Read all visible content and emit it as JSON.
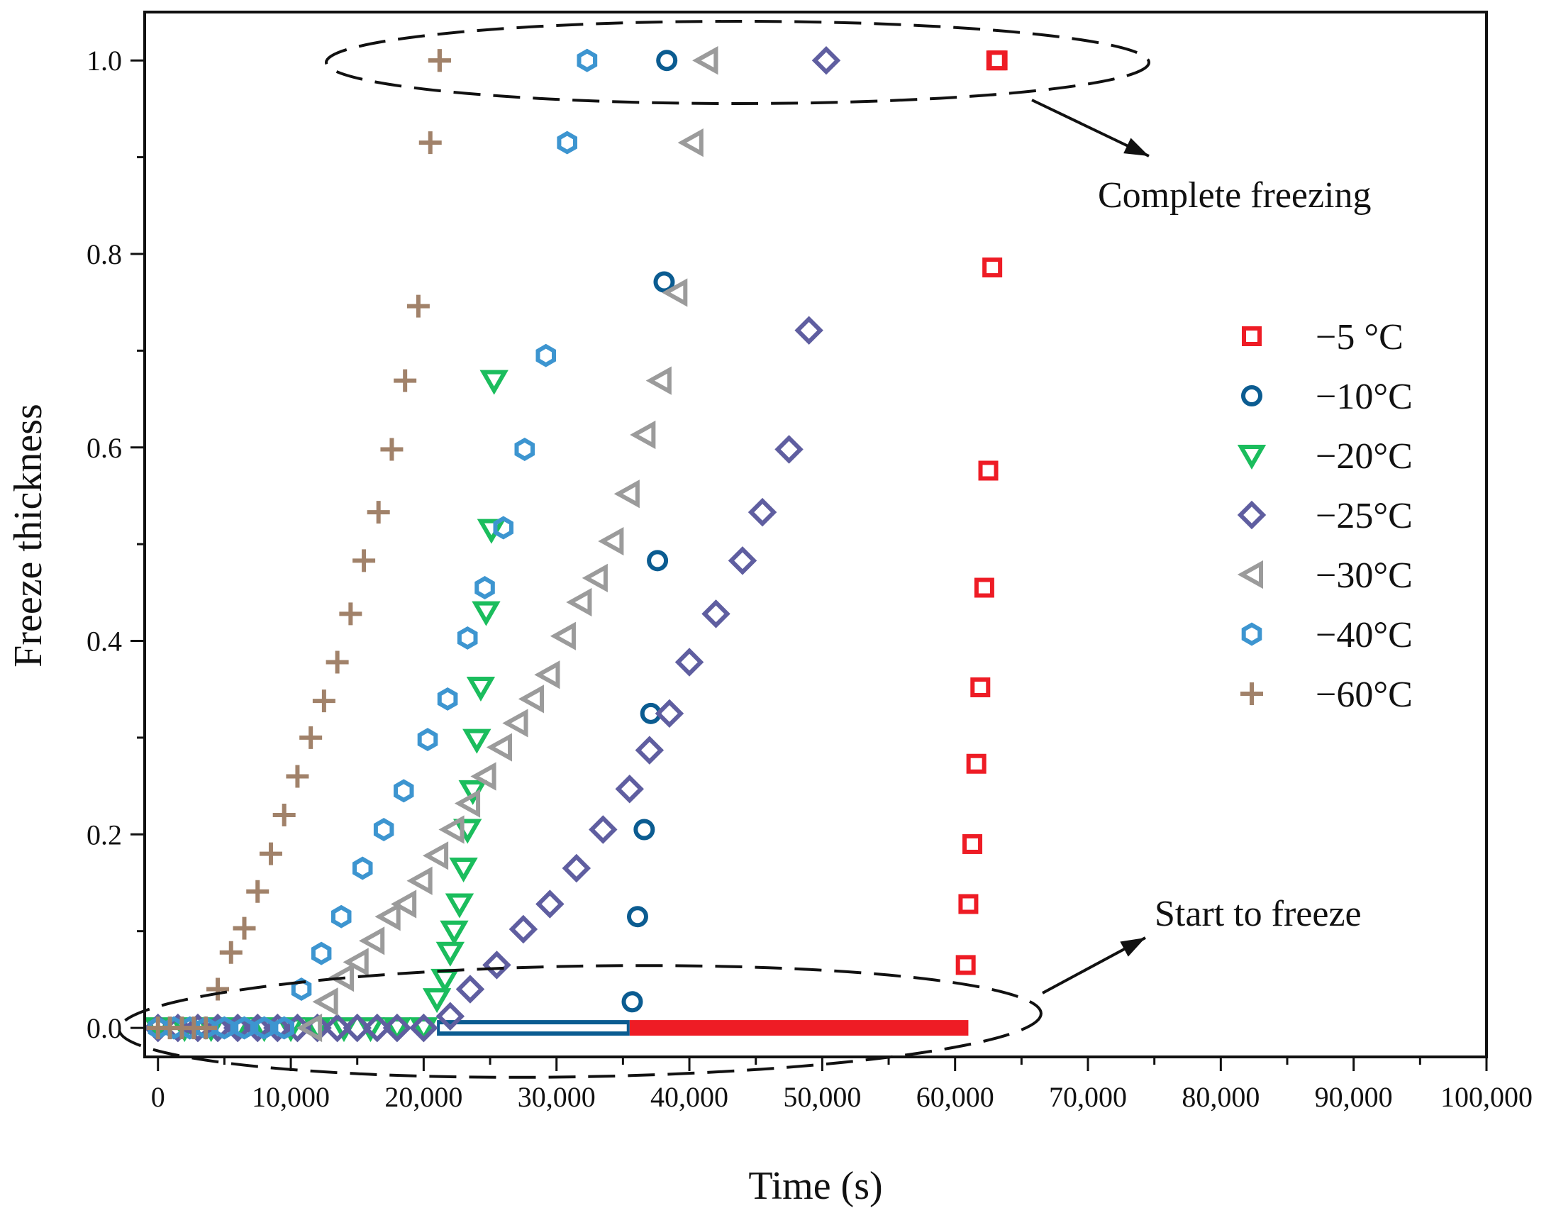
{
  "chart_data": {
    "type": "scatter",
    "title": "",
    "xlabel": "Time (s)",
    "ylabel": "Freeze thickness",
    "xlim": [
      -1000,
      100000
    ],
    "ylim": [
      -0.03,
      1.05
    ],
    "x_ticks": [
      0,
      10000,
      20000,
      30000,
      40000,
      50000,
      60000,
      70000,
      80000,
      90000,
      100000
    ],
    "x_tick_labels": [
      "0",
      "10,000",
      "20,000",
      "30,000",
      "40,000",
      "50,000",
      "60,000",
      "70,000",
      "80,000",
      "90,000",
      "100,000"
    ],
    "y_ticks": [
      0.0,
      0.2,
      0.4,
      0.6,
      0.8,
      1.0
    ],
    "y_tick_labels": [
      "0.0",
      "0.2",
      "0.4",
      "0.6",
      "0.8",
      "1.0"
    ],
    "grid": false,
    "legend_position": "right",
    "series": [
      {
        "name": "−5  °C",
        "marker": "square",
        "color": "#ee1c25",
        "x": [
          60800,
          61000,
          61300,
          61600,
          61900,
          62200,
          62500,
          62800,
          63100,
          63200
        ],
        "y": [
          0.065,
          0.128,
          0.19,
          0.273,
          0.352,
          0.455,
          0.576,
          0.786,
          1.0,
          1.0
        ],
        "flat_zero_line": [
          35500,
          61000
        ]
      },
      {
        "name": "−10°C",
        "marker": "circle",
        "color": "#0b5c91",
        "x": [
          35700,
          36100,
          36600,
          37100,
          37600,
          38100,
          38300
        ],
        "y": [
          0.027,
          0.115,
          0.205,
          0.325,
          0.483,
          0.771,
          1.0
        ],
        "flat_zero_line": [
          21000,
          35500
        ]
      },
      {
        "name": "−20°C",
        "marker": "triangle-down",
        "color": "#1bbd5d",
        "x": [
          0,
          2000,
          4000,
          6000,
          8000,
          10000,
          12000,
          14000,
          16000,
          18000,
          20000,
          21000,
          21600,
          22000,
          22300,
          22700,
          23000,
          23300,
          23700,
          24000,
          24300,
          24700,
          25100,
          25300
        ],
        "y": [
          0,
          0,
          0,
          0,
          0,
          0,
          0,
          0,
          0,
          0,
          0,
          0.03,
          0.05,
          0.078,
          0.1,
          0.128,
          0.165,
          0.205,
          0.245,
          0.298,
          0.352,
          0.43,
          0.515,
          0.669
        ]
      },
      {
        "name": "−25°C",
        "marker": "diamond",
        "color": "#5f5ea0",
        "x": [
          0,
          1500,
          3000,
          4500,
          6000,
          7500,
          9000,
          10500,
          12000,
          13500,
          15000,
          16500,
          18000,
          20000,
          22000,
          23500,
          25500,
          27500,
          29500,
          31500,
          33500,
          35500,
          37000,
          38500,
          40000,
          42000,
          44000,
          45500,
          47500,
          49000,
          50300
        ],
        "y": [
          0,
          0,
          0,
          0,
          0,
          0,
          0,
          0,
          0,
          0,
          0,
          0,
          0,
          0,
          0.012,
          0.04,
          0.065,
          0.102,
          0.128,
          0.165,
          0.205,
          0.247,
          0.287,
          0.325,
          0.378,
          0.428,
          0.483,
          0.533,
          0.598,
          0.721,
          1.0
        ]
      },
      {
        "name": "−30°C",
        "marker": "triangle-left",
        "color": "#9b9b9b",
        "x": [
          11500,
          12700,
          13900,
          15000,
          16200,
          17400,
          18600,
          19800,
          21000,
          22200,
          23400,
          24600,
          25800,
          27000,
          28200,
          29400,
          30600,
          31800,
          33000,
          34200,
          35400,
          36600,
          37800,
          39000,
          40200,
          41300,
          41300
        ],
        "y": [
          0,
          0.027,
          0.052,
          0.068,
          0.09,
          0.115,
          0.128,
          0.152,
          0.178,
          0.205,
          0.232,
          0.26,
          0.29,
          0.315,
          0.34,
          0.365,
          0.405,
          0.44,
          0.465,
          0.503,
          0.552,
          0.613,
          0.669,
          0.76,
          0.915,
          1.0,
          1.0
        ]
      },
      {
        "name": "−40°C",
        "marker": "hexagon",
        "color": "#3d95d0",
        "x": [
          0,
          1200,
          2400,
          3600,
          5000,
          6500,
          8000,
          9500,
          10800,
          12300,
          13800,
          15400,
          17000,
          18500,
          20300,
          21800,
          23300,
          24600,
          26000,
          27600,
          29200,
          30800,
          32300,
          32300
        ],
        "y": [
          0,
          0,
          0,
          0,
          0,
          0,
          0,
          0,
          0.04,
          0.077,
          0.115,
          0.165,
          0.205,
          0.245,
          0.298,
          0.34,
          0.403,
          0.455,
          0.517,
          0.598,
          0.695,
          0.915,
          1.0,
          1.0
        ]
      },
      {
        "name": "−60°C",
        "marker": "plus",
        "color": "#a1826a",
        "x": [
          0,
          900,
          1800,
          2700,
          3600,
          4500,
          5500,
          6500,
          7500,
          8500,
          9500,
          10500,
          11500,
          12500,
          13500,
          14500,
          15500,
          16600,
          17600,
          18600,
          19600,
          20500,
          21200,
          21200
        ],
        "y": [
          0,
          0,
          0,
          0,
          0,
          0.04,
          0.078,
          0.103,
          0.141,
          0.18,
          0.22,
          0.26,
          0.3,
          0.338,
          0.378,
          0.428,
          0.483,
          0.533,
          0.598,
          0.669,
          0.746,
          0.915,
          1.0,
          1.0
        ]
      }
    ],
    "annotations": [
      {
        "text": "Complete freezing",
        "target": [
          41000,
          1.0
        ]
      },
      {
        "text": "Start to freeze",
        "target": [
          31000,
          0.0
        ]
      }
    ]
  }
}
